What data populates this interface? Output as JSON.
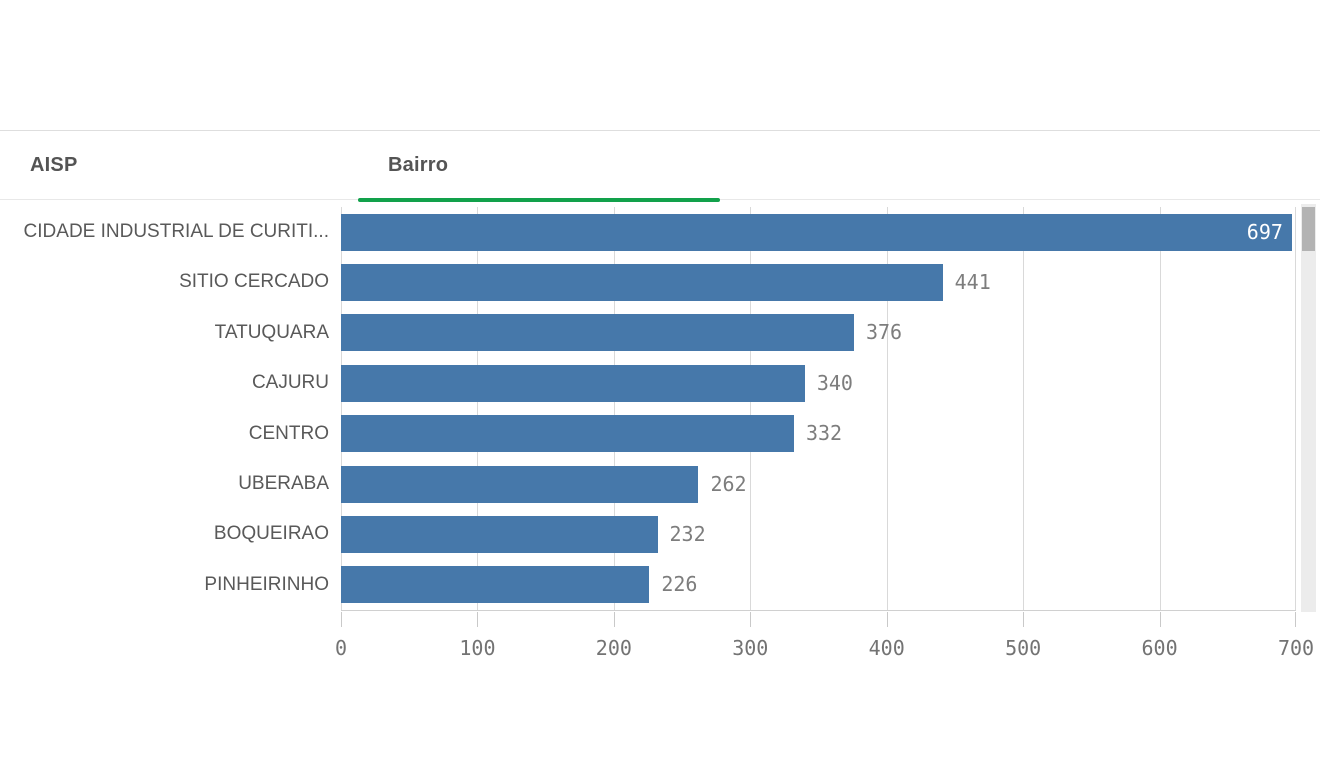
{
  "tabs": [
    {
      "label": "AISP",
      "active": false
    },
    {
      "label": "Bairro",
      "active": true
    }
  ],
  "colors": {
    "bar": "#4678aa",
    "active_tab_underline": "#12a14b",
    "tab_text": "#545454",
    "category_text": "#595959",
    "value_outside": "#7d7d7d",
    "value_inside": "#ffffff",
    "gridline": "#d9d9d9",
    "tick_text": "#737373",
    "scrollbar_track": "#ececec",
    "scrollbar_thumb": "#b3b3b3"
  },
  "chart_data": {
    "type": "bar",
    "orientation": "horizontal",
    "title": "",
    "xlabel": "",
    "ylabel": "",
    "categories": [
      "CIDADE INDUSTRIAL DE CURITI...",
      "SITIO CERCADO",
      "TATUQUARA",
      "CAJURU",
      "CENTRO",
      "UBERABA",
      "BOQUEIRAO",
      "PINHEIRINHO"
    ],
    "values": [
      697,
      441,
      376,
      340,
      332,
      262,
      232,
      226
    ],
    "xlim": [
      0,
      700
    ],
    "xticks": [
      0,
      100,
      200,
      300,
      400,
      500,
      600,
      700
    ],
    "grid": true,
    "value_labels": "shown",
    "legend": "none",
    "scroll_position": "top"
  }
}
